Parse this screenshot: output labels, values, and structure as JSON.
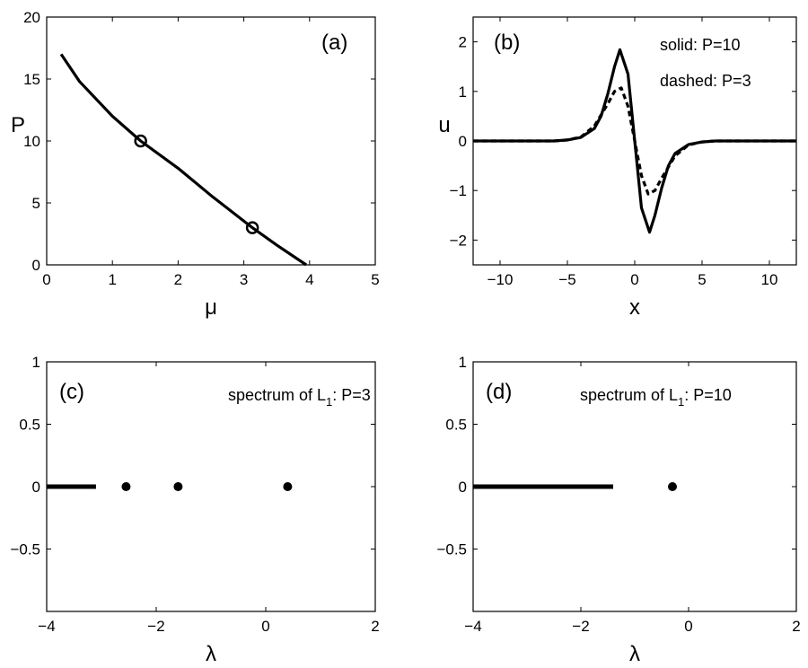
{
  "chart_data": [
    {
      "id": "a",
      "type": "line",
      "panel_label": "(a)",
      "xlabel": "μ",
      "ylabel": "P",
      "xlim": [
        0,
        5
      ],
      "ylim": [
        0,
        20
      ],
      "xticks": [
        0,
        1,
        2,
        3,
        4,
        5
      ],
      "yticks": [
        0,
        5,
        10,
        15,
        20
      ],
      "xticklabels": [
        "0",
        "1",
        "2",
        "3",
        "4",
        "5"
      ],
      "yticklabels": [
        "0",
        "5",
        "10",
        "15",
        "20"
      ],
      "series": [
        {
          "style": "solid",
          "x": [
            0.22,
            0.5,
            1.0,
            1.43,
            2.0,
            2.5,
            3.13,
            3.5,
            3.95
          ],
          "y": [
            17.0,
            14.8,
            12.0,
            10.0,
            7.8,
            5.6,
            3.0,
            1.6,
            0.0
          ]
        }
      ],
      "markers": [
        {
          "x": 1.43,
          "y": 10
        },
        {
          "x": 3.13,
          "y": 3
        }
      ],
      "grid": false
    },
    {
      "id": "b",
      "type": "line",
      "panel_label": "(b)",
      "xlabel": "x",
      "ylabel": "u",
      "xlim": [
        -12,
        12
      ],
      "ylim": [
        -2.5,
        2.5
      ],
      "xticks": [
        -10,
        -5,
        0,
        5,
        10
      ],
      "yticks": [
        -2,
        -1,
        0,
        1,
        2
      ],
      "xticklabels": [
        "−10",
        "−5",
        "0",
        "5",
        "10"
      ],
      "yticklabels": [
        "−2",
        "−1",
        "0",
        "1",
        "2"
      ],
      "annotations": [
        "solid: P=10",
        "dashed: P=3"
      ],
      "series": [
        {
          "style": "solid",
          "x": [
            -12,
            -6,
            -5,
            -4,
            -3,
            -2.5,
            -2,
            -1.5,
            -1.1,
            -0.5,
            0,
            0.5,
            1.1,
            1.5,
            2,
            2.5,
            3,
            4,
            5,
            6,
            12
          ],
          "y": [
            0,
            0.0,
            0.02,
            0.07,
            0.25,
            0.5,
            0.95,
            1.5,
            1.84,
            1.35,
            0,
            -1.35,
            -1.84,
            -1.5,
            -0.95,
            -0.5,
            -0.25,
            -0.07,
            -0.02,
            0.0,
            0
          ]
        },
        {
          "style": "dashed",
          "x": [
            -12,
            -6,
            -5,
            -4,
            -3,
            -2,
            -1.5,
            -1.0,
            -0.5,
            0,
            0.5,
            1.0,
            1.5,
            2,
            3,
            4,
            5,
            6,
            12
          ],
          "y": [
            0,
            0.0,
            0.02,
            0.08,
            0.3,
            0.75,
            1.0,
            1.07,
            0.7,
            0,
            -0.7,
            -1.07,
            -1.0,
            -0.75,
            -0.3,
            -0.08,
            -0.02,
            0.0,
            0
          ]
        }
      ],
      "grid": false
    },
    {
      "id": "c",
      "type": "scatter",
      "panel_label": "(c)",
      "xlabel": "λ",
      "ylabel": "",
      "xlim": [
        -4,
        2
      ],
      "ylim": [
        -1,
        1
      ],
      "xticks": [
        -4,
        -2,
        0,
        2
      ],
      "yticks": [
        -0.5,
        0,
        0.5,
        1
      ],
      "xticklabels": [
        "−4",
        "−2",
        "0",
        "2"
      ],
      "yticklabels": [
        "−0.5",
        "0",
        "0.5",
        "1"
      ],
      "annotation_main": "spectrum of L",
      "annotation_sub": "1",
      "annotation_tail": ": P=3",
      "continuous_spectrum": {
        "from": -4,
        "to": -3.1,
        "y": 0
      },
      "points": [
        {
          "x": -2.55,
          "y": 0
        },
        {
          "x": -1.6,
          "y": 0
        },
        {
          "x": 0.4,
          "y": 0
        }
      ],
      "grid": false
    },
    {
      "id": "d",
      "type": "scatter",
      "panel_label": "(d)",
      "xlabel": "λ",
      "ylabel": "",
      "xlim": [
        -4,
        2
      ],
      "ylim": [
        -1,
        1
      ],
      "xticks": [
        -4,
        -2,
        0,
        2
      ],
      "yticks": [
        -0.5,
        0,
        0.5,
        1
      ],
      "xticklabels": [
        "−4",
        "−2",
        "0",
        "2"
      ],
      "yticklabels": [
        "−0.5",
        "0",
        "0.5",
        "1"
      ],
      "annotation_main": "spectrum of L",
      "annotation_sub": "1",
      "annotation_tail": ": P=10",
      "continuous_spectrum": {
        "from": -4,
        "to": -1.4,
        "y": 0
      },
      "points": [
        {
          "x": -0.3,
          "y": 0
        }
      ],
      "grid": false
    }
  ]
}
